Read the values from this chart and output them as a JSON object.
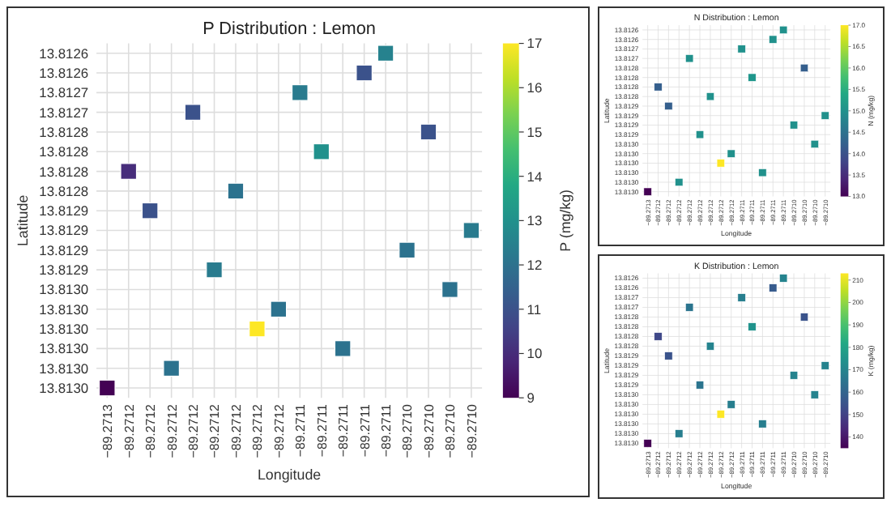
{
  "chart_data": [
    {
      "type": "heatmap",
      "title": "P Distribution : Lemon",
      "xlabel": "Longitude",
      "ylabel": "Latitude",
      "clabel": "P (mg/kg)",
      "grid": true,
      "categories": [
        "−89.2713",
        "−89.2712",
        "−89.2712",
        "−89.2712",
        "−89.2712",
        "−89.2712",
        "−89.2712",
        "−89.2712",
        "−89.2712",
        "−89.2711",
        "−89.2711",
        "−89.2711",
        "−89.2711",
        "−89.2711",
        "−89.2710",
        "−89.2710",
        "−89.2710",
        "−89.2710"
      ],
      "y_categories": [
        "13.8126",
        "13.8126",
        "13.8127",
        "13.8127",
        "13.8128",
        "13.8128",
        "13.8128",
        "13.8128",
        "13.8129",
        "13.8129",
        "13.8129",
        "13.8129",
        "13.8130",
        "13.8130",
        "13.8130",
        "13.8130",
        "13.8130",
        "13.8130"
      ],
      "clim": [
        9,
        17
      ],
      "cticks": [
        9,
        10,
        11,
        12,
        13,
        14,
        15,
        16,
        17
      ],
      "cells": [
        [
          null,
          null,
          null,
          null,
          null,
          null,
          null,
          null,
          null,
          null,
          null,
          null,
          null,
          12.5,
          null,
          null,
          null,
          null
        ],
        [
          null,
          null,
          null,
          null,
          null,
          null,
          null,
          null,
          null,
          null,
          null,
          null,
          11,
          null,
          null,
          null,
          null,
          null
        ],
        [
          null,
          null,
          null,
          null,
          null,
          null,
          null,
          null,
          null,
          12.3,
          null,
          null,
          null,
          null,
          null,
          null,
          null,
          null
        ],
        [
          null,
          null,
          null,
          null,
          11,
          null,
          null,
          null,
          null,
          null,
          null,
          null,
          null,
          null,
          null,
          null,
          null,
          null
        ],
        [
          null,
          null,
          null,
          null,
          null,
          null,
          null,
          null,
          null,
          null,
          null,
          null,
          null,
          null,
          null,
          11,
          null,
          null
        ],
        [
          null,
          null,
          null,
          null,
          null,
          null,
          null,
          null,
          null,
          null,
          13,
          null,
          null,
          null,
          null,
          null,
          null,
          null
        ],
        [
          null,
          10,
          null,
          null,
          null,
          null,
          null,
          null,
          null,
          null,
          null,
          null,
          null,
          null,
          null,
          null,
          null,
          null
        ],
        [
          null,
          null,
          null,
          null,
          null,
          null,
          12,
          null,
          null,
          null,
          null,
          null,
          null,
          null,
          null,
          null,
          null,
          null
        ],
        [
          null,
          null,
          11,
          null,
          null,
          null,
          null,
          null,
          null,
          null,
          null,
          null,
          null,
          null,
          null,
          null,
          null,
          null
        ],
        [
          null,
          null,
          null,
          null,
          null,
          null,
          null,
          null,
          null,
          null,
          null,
          null,
          null,
          null,
          null,
          null,
          null,
          12.3
        ],
        [
          null,
          null,
          null,
          null,
          null,
          null,
          null,
          null,
          null,
          null,
          null,
          null,
          null,
          null,
          12,
          null,
          null,
          null
        ],
        [
          null,
          null,
          null,
          null,
          null,
          12.3,
          null,
          null,
          null,
          null,
          null,
          null,
          null,
          null,
          null,
          null,
          null,
          null
        ],
        [
          null,
          null,
          null,
          null,
          null,
          null,
          null,
          null,
          null,
          null,
          null,
          null,
          null,
          null,
          null,
          null,
          12,
          null
        ],
        [
          null,
          null,
          null,
          null,
          null,
          null,
          null,
          null,
          12,
          null,
          null,
          null,
          null,
          null,
          null,
          null,
          null,
          null
        ],
        [
          null,
          null,
          null,
          null,
          null,
          null,
          null,
          17,
          null,
          null,
          null,
          null,
          null,
          null,
          null,
          null,
          null,
          null
        ],
        [
          null,
          null,
          null,
          null,
          null,
          null,
          null,
          null,
          null,
          null,
          null,
          12,
          null,
          null,
          null,
          null,
          null,
          null
        ],
        [
          null,
          null,
          null,
          12,
          null,
          null,
          null,
          null,
          null,
          null,
          null,
          null,
          null,
          null,
          null,
          null,
          null,
          null
        ],
        [
          9,
          null,
          null,
          null,
          null,
          null,
          null,
          null,
          null,
          null,
          null,
          null,
          null,
          null,
          null,
          null,
          null,
          null
        ]
      ]
    },
    {
      "type": "heatmap",
      "title": "N Distribution : Lemon",
      "xlabel": "Longitude",
      "ylabel": "Latitude",
      "clabel": "N (mg/kg)",
      "grid": true,
      "categories": [
        "−89.2713",
        "−89.2712",
        "−89.2712",
        "−89.2712",
        "−89.2712",
        "−89.2712",
        "−89.2712",
        "−89.2712",
        "−89.2712",
        "−89.2711",
        "−89.2711",
        "−89.2711",
        "−89.2711",
        "−89.2711",
        "−89.2710",
        "−89.2710",
        "−89.2710",
        "−89.2710"
      ],
      "y_categories": [
        "13.8126",
        "13.8126",
        "13.8127",
        "13.8127",
        "13.8128",
        "13.8128",
        "13.8128",
        "13.8128",
        "13.8129",
        "13.8129",
        "13.8129",
        "13.8129",
        "13.8130",
        "13.8130",
        "13.8130",
        "13.8130",
        "13.8130",
        "13.8130"
      ],
      "clim": [
        13,
        17
      ],
      "cticks": [
        {
          "value": 13,
          "label": "13.0"
        },
        {
          "value": 13.5,
          "label": "13.5"
        },
        {
          "value": 14,
          "label": "14.0"
        },
        {
          "value": 14.5,
          "label": "14.5"
        },
        {
          "value": 15,
          "label": "15.0"
        },
        {
          "value": 15.5,
          "label": "15.5"
        },
        {
          "value": 16,
          "label": "16.0"
        },
        {
          "value": 16.5,
          "label": "16.5"
        },
        {
          "value": 17,
          "label": "17.0"
        }
      ],
      "cells": [
        [
          null,
          null,
          null,
          null,
          null,
          null,
          null,
          null,
          null,
          null,
          null,
          null,
          null,
          15,
          null,
          null,
          null,
          null
        ],
        [
          null,
          null,
          null,
          null,
          null,
          null,
          null,
          null,
          null,
          null,
          null,
          null,
          15,
          null,
          null,
          null,
          null,
          null
        ],
        [
          null,
          null,
          null,
          null,
          null,
          null,
          null,
          null,
          null,
          15,
          null,
          null,
          null,
          null,
          null,
          null,
          null,
          null
        ],
        [
          null,
          null,
          null,
          null,
          15,
          null,
          null,
          null,
          null,
          null,
          null,
          null,
          null,
          null,
          null,
          null,
          null,
          null
        ],
        [
          null,
          null,
          null,
          null,
          null,
          null,
          null,
          null,
          null,
          null,
          null,
          null,
          null,
          null,
          null,
          14.2,
          null,
          null
        ],
        [
          null,
          null,
          null,
          null,
          null,
          null,
          null,
          null,
          null,
          null,
          15.1,
          null,
          null,
          null,
          null,
          null,
          null,
          null
        ],
        [
          null,
          14.2,
          null,
          null,
          null,
          null,
          null,
          null,
          null,
          null,
          null,
          null,
          null,
          null,
          null,
          null,
          null,
          null
        ],
        [
          null,
          null,
          null,
          null,
          null,
          null,
          15,
          null,
          null,
          null,
          null,
          null,
          null,
          null,
          null,
          null,
          null,
          null
        ],
        [
          null,
          null,
          14.2,
          null,
          null,
          null,
          null,
          null,
          null,
          null,
          null,
          null,
          null,
          null,
          null,
          null,
          null,
          null
        ],
        [
          null,
          null,
          null,
          null,
          null,
          null,
          null,
          null,
          null,
          null,
          null,
          null,
          null,
          null,
          null,
          null,
          null,
          15
        ],
        [
          null,
          null,
          null,
          null,
          null,
          null,
          null,
          null,
          null,
          null,
          null,
          null,
          null,
          null,
          15,
          null,
          null,
          null
        ],
        [
          null,
          null,
          null,
          null,
          null,
          15,
          null,
          null,
          null,
          null,
          null,
          null,
          null,
          null,
          null,
          null,
          null,
          null
        ],
        [
          null,
          null,
          null,
          null,
          null,
          null,
          null,
          null,
          null,
          null,
          null,
          null,
          null,
          null,
          null,
          null,
          15,
          null
        ],
        [
          null,
          null,
          null,
          null,
          null,
          null,
          null,
          null,
          15,
          null,
          null,
          null,
          null,
          null,
          null,
          null,
          null,
          null
        ],
        [
          null,
          null,
          null,
          null,
          null,
          null,
          null,
          17,
          null,
          null,
          null,
          null,
          null,
          null,
          null,
          null,
          null,
          null
        ],
        [
          null,
          null,
          null,
          null,
          null,
          null,
          null,
          null,
          null,
          null,
          null,
          15,
          null,
          null,
          null,
          null,
          null,
          null
        ],
        [
          null,
          null,
          null,
          15,
          null,
          null,
          null,
          null,
          null,
          null,
          null,
          null,
          null,
          null,
          null,
          null,
          null,
          null
        ],
        [
          13,
          null,
          null,
          null,
          null,
          null,
          null,
          null,
          null,
          null,
          null,
          null,
          null,
          null,
          null,
          null,
          null,
          null
        ]
      ]
    },
    {
      "type": "heatmap",
      "title": "K Distribution : Lemon",
      "xlabel": "Longitude",
      "ylabel": "Latitude",
      "clabel": "K (mg/kg)",
      "grid": true,
      "categories": [
        "−89.2713",
        "−89.2712",
        "−89.2712",
        "−89.2712",
        "−89.2712",
        "−89.2712",
        "−89.2712",
        "−89.2712",
        "−89.2712",
        "−89.2711",
        "−89.2711",
        "−89.2711",
        "−89.2711",
        "−89.2711",
        "−89.2710",
        "−89.2710",
        "−89.2710",
        "−89.2710"
      ],
      "y_categories": [
        "13.8126",
        "13.8126",
        "13.8127",
        "13.8127",
        "13.8128",
        "13.8128",
        "13.8128",
        "13.8128",
        "13.8129",
        "13.8129",
        "13.8129",
        "13.8129",
        "13.8130",
        "13.8130",
        "13.8130",
        "13.8130",
        "13.8130",
        "13.8130"
      ],
      "clim": [
        135,
        213
      ],
      "cticks": [
        140,
        150,
        160,
        170,
        180,
        190,
        200,
        210
      ],
      "cells": [
        [
          null,
          null,
          null,
          null,
          null,
          null,
          null,
          null,
          null,
          null,
          null,
          null,
          null,
          170,
          null,
          null,
          null,
          null
        ],
        [
          null,
          null,
          null,
          null,
          null,
          null,
          null,
          null,
          null,
          null,
          null,
          null,
          157,
          null,
          null,
          null,
          null,
          null
        ],
        [
          null,
          null,
          null,
          null,
          null,
          null,
          null,
          null,
          null,
          168,
          null,
          null,
          null,
          null,
          null,
          null,
          null,
          null
        ],
        [
          null,
          null,
          null,
          null,
          165,
          null,
          null,
          null,
          null,
          null,
          null,
          null,
          null,
          null,
          null,
          null,
          null,
          null
        ],
        [
          null,
          null,
          null,
          null,
          null,
          null,
          null,
          null,
          null,
          null,
          null,
          null,
          null,
          null,
          null,
          155,
          null,
          null
        ],
        [
          null,
          null,
          null,
          null,
          null,
          null,
          null,
          null,
          null,
          null,
          175,
          null,
          null,
          null,
          null,
          null,
          null,
          null
        ],
        [
          null,
          152,
          null,
          null,
          null,
          null,
          null,
          null,
          null,
          null,
          null,
          null,
          null,
          null,
          null,
          null,
          null,
          null
        ],
        [
          null,
          null,
          null,
          null,
          null,
          null,
          170,
          null,
          null,
          null,
          null,
          null,
          null,
          null,
          null,
          null,
          null,
          null
        ],
        [
          null,
          null,
          155,
          null,
          null,
          null,
          null,
          null,
          null,
          null,
          null,
          null,
          null,
          null,
          null,
          null,
          null,
          null
        ],
        [
          null,
          null,
          null,
          null,
          null,
          null,
          null,
          null,
          null,
          null,
          null,
          null,
          null,
          null,
          null,
          null,
          null,
          170
        ],
        [
          null,
          null,
          null,
          null,
          null,
          null,
          null,
          null,
          null,
          null,
          null,
          null,
          null,
          null,
          170,
          null,
          null,
          null
        ],
        [
          null,
          null,
          null,
          null,
          null,
          165,
          null,
          null,
          null,
          null,
          null,
          null,
          null,
          null,
          null,
          null,
          null,
          null
        ],
        [
          null,
          null,
          null,
          null,
          null,
          null,
          null,
          null,
          null,
          null,
          null,
          null,
          null,
          null,
          null,
          null,
          170,
          null
        ],
        [
          null,
          null,
          null,
          null,
          null,
          null,
          null,
          null,
          168,
          null,
          null,
          null,
          null,
          null,
          null,
          null,
          null,
          null
        ],
        [
          null,
          null,
          null,
          null,
          null,
          null,
          null,
          213,
          null,
          null,
          null,
          null,
          null,
          null,
          null,
          null,
          null,
          null
        ],
        [
          null,
          null,
          null,
          null,
          null,
          null,
          null,
          null,
          null,
          null,
          null,
          168,
          null,
          null,
          null,
          null,
          null,
          null
        ],
        [
          null,
          null,
          null,
          168,
          null,
          null,
          null,
          null,
          null,
          null,
          null,
          null,
          null,
          null,
          null,
          null,
          null,
          null
        ],
        [
          135,
          null,
          null,
          null,
          null,
          null,
          null,
          null,
          null,
          null,
          null,
          null,
          null,
          null,
          null,
          null,
          null,
          null
        ]
      ]
    }
  ]
}
